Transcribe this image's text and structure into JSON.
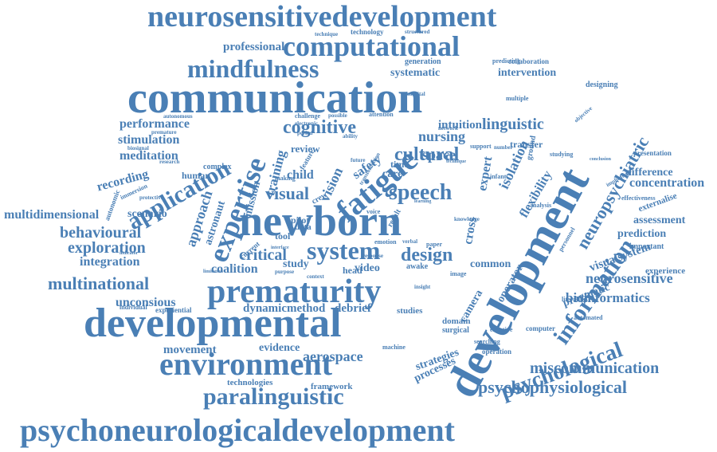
{
  "color": "#4a7fb5",
  "words": [
    "neurosensitivedevelopment",
    "computational",
    "mindfulness",
    "professional",
    "technique",
    "technology",
    "structured",
    "generation",
    "predicting",
    "collaboration",
    "intervention",
    "systematic",
    "communication",
    "cognitive",
    "linguistic",
    "performance",
    "stimulation",
    "meditation",
    "application",
    "expertise",
    "fatigue",
    "development",
    "neuropsychiatric",
    "nursing",
    "cultural",
    "speech",
    "visual",
    "newborn",
    "system",
    "design",
    "critical",
    "coalition",
    "prematurity",
    "multinational",
    "unconsious",
    "developmental",
    "environment",
    "paralinguistic",
    "psychoneurologicaldevelopment",
    "psychophysiological",
    "miscommunication",
    "bioinformatics",
    "neurosensitive",
    "visualsystem",
    "information",
    "psychological",
    "concentration",
    "difference",
    "assessment",
    "prediction",
    "externalise",
    "behavioural",
    "exploration",
    "integration",
    "multidimensional",
    "recording",
    "scenario",
    "approach",
    "astronaut",
    "mission",
    "training",
    "child",
    "vision",
    "safety",
    "space",
    "intuition",
    "expert",
    "isolation",
    "flexibility",
    "review",
    "care",
    "time",
    "pilot",
    "crew",
    "data",
    "tool",
    "study",
    "video",
    "head",
    "awake",
    "dynamic",
    "method",
    "debrief",
    "studies",
    "movement",
    "evidence",
    "aerospace",
    "strategies",
    "processes",
    "domain",
    "surgical",
    "camera",
    "cross",
    "common",
    "pragmatic",
    "operator",
    "technologies",
    "framework",
    "experiential",
    "individual",
    "transfer",
    "ground",
    "designing",
    "experience",
    "presentation",
    "important",
    "effectiveness",
    "automated",
    "computer",
    "literature",
    "effective",
    "operation",
    "searching",
    "machine",
    "infant",
    "hospital",
    "multiple",
    "objective",
    "attention",
    "challenge",
    "possible",
    "period",
    "electronic",
    "premature",
    "biosignal",
    "research",
    "immersion",
    "human",
    "complex",
    "feature",
    "making",
    "current",
    "purpose",
    "context",
    "insight",
    "paper",
    "image",
    "support",
    "network",
    "number",
    "analysis",
    "studying",
    "conclusion",
    "implication",
    "personnel",
    "verbal",
    "interface",
    "limitation",
    "indicator",
    "protective",
    "autonomous",
    "transformation",
    "autonomic",
    "result",
    "voice",
    "emotion",
    "response",
    "ability",
    "future",
    "learning",
    "technique",
    "knowledge"
  ]
}
